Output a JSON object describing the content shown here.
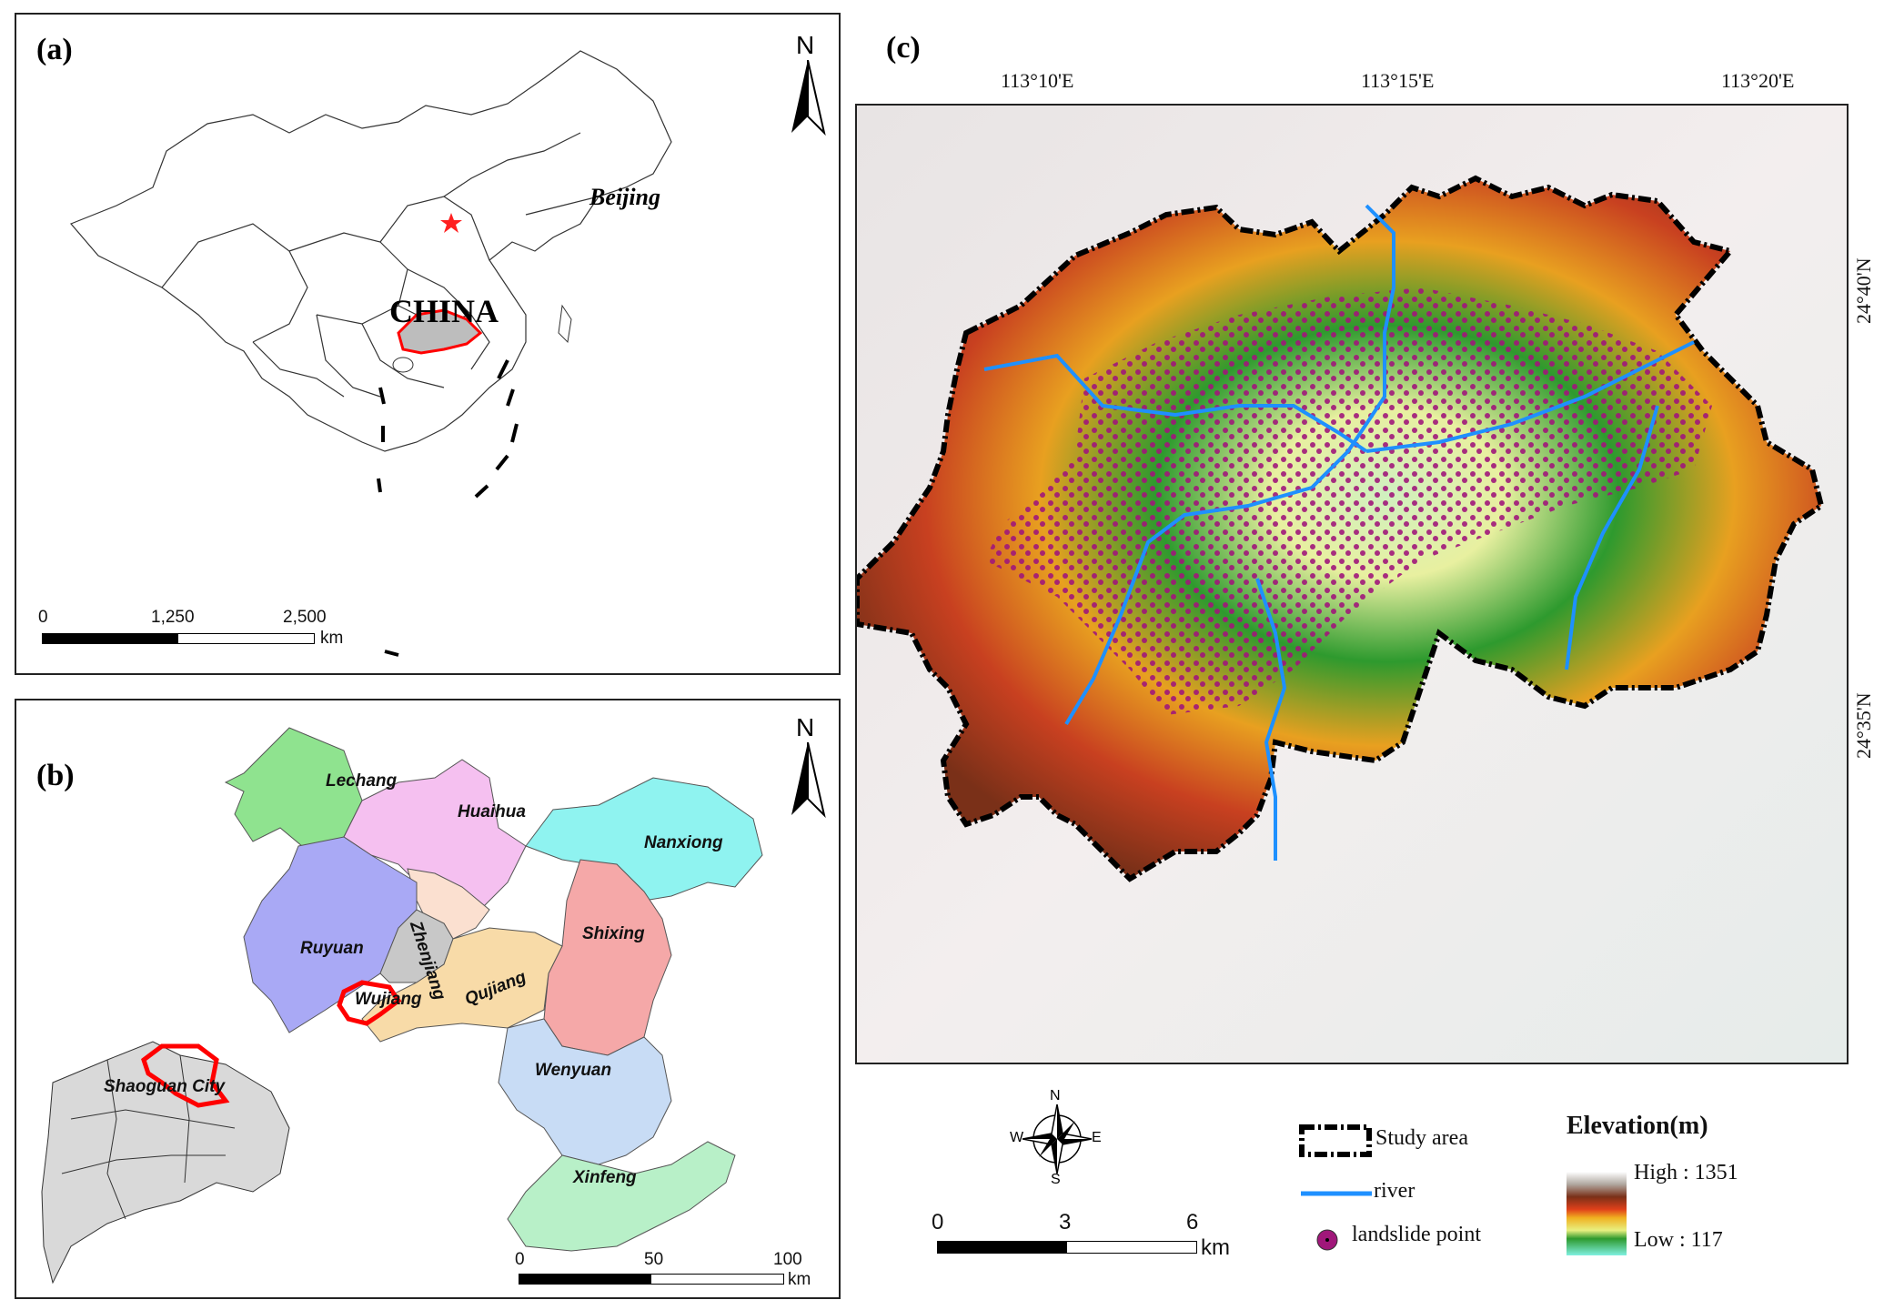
{
  "panels": {
    "a": {
      "label": "(a)",
      "country": "CHINA",
      "capital": "Beijing",
      "north": "N",
      "scale": {
        "ticks": [
          "0",
          "1,250",
          "2,500"
        ],
        "unit": "km"
      }
    },
    "b": {
      "label": "(b)",
      "north": "N",
      "counties": [
        "Lechang",
        "Huaihua",
        "Nanxiong",
        "Zhenjiang",
        "Ruyuan",
        "Shixing",
        "Wujiang",
        "Qujiang",
        "Wenyuan",
        "Xinfeng"
      ],
      "city": "Shaoguan City",
      "scale": {
        "ticks": [
          "0",
          "50",
          "100"
        ],
        "unit": "km"
      }
    },
    "c": {
      "label": "(c)",
      "lon_labels": [
        "113°10'E",
        "113°15'E",
        "113°20'E"
      ],
      "lat_labels": [
        "24°40'N",
        "24°35'N"
      ]
    }
  },
  "compass": {
    "n": "N",
    "s": "S",
    "e": "E",
    "w": "W"
  },
  "scale_c": {
    "ticks": [
      "0",
      "3",
      "6"
    ],
    "unit": "km"
  },
  "legend": {
    "study_area": "Study area",
    "river": "river",
    "landslide": "landslide point",
    "elevation_title": "Elevation(m)",
    "high": "High : 1351",
    "low": "Low : 117"
  },
  "colors": {
    "river": "#1e90ff",
    "landslide": "#a0177a",
    "highlight": "#ff0000"
  }
}
